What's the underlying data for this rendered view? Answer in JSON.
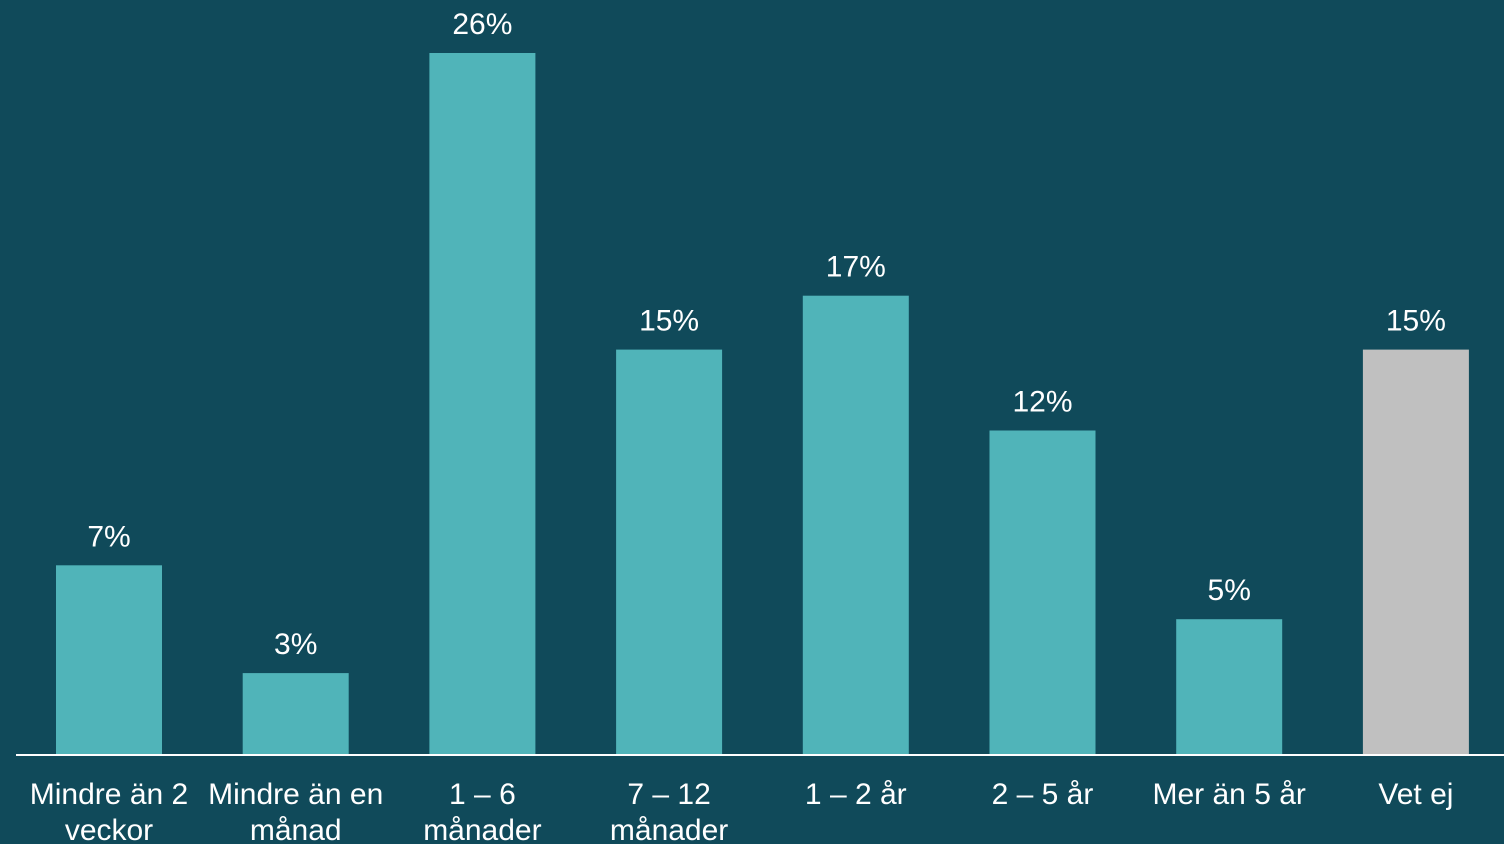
{
  "chart_data": {
    "type": "bar",
    "title": "",
    "xlabel": "",
    "ylabel": "",
    "ylim": [
      0,
      26
    ],
    "grid": false,
    "categories": [
      [
        "Mindre än 2",
        "veckor"
      ],
      [
        "Mindre än en",
        "månad"
      ],
      [
        "1 – 6",
        "månader"
      ],
      [
        "7 – 12",
        "månader"
      ],
      [
        "1 – 2 år"
      ],
      [
        "2 – 5 år"
      ],
      [
        "Mer än 5 år"
      ],
      [
        "Vet ej"
      ]
    ],
    "values": [
      7,
      3,
      26,
      15,
      17,
      12,
      5,
      15
    ],
    "value_labels": [
      "7%",
      "3%",
      "26%",
      "15%",
      "17%",
      "12%",
      "5%",
      "15%"
    ],
    "colors": {
      "background": "#104a5a",
      "bar": "#50b4b9",
      "bar_unknown": "#c0c0c0",
      "axis": "#ffffff",
      "text": "#ffffff"
    },
    "bar_colors": [
      "bar",
      "bar",
      "bar",
      "bar",
      "bar",
      "bar",
      "bar",
      "bar_unknown"
    ]
  }
}
